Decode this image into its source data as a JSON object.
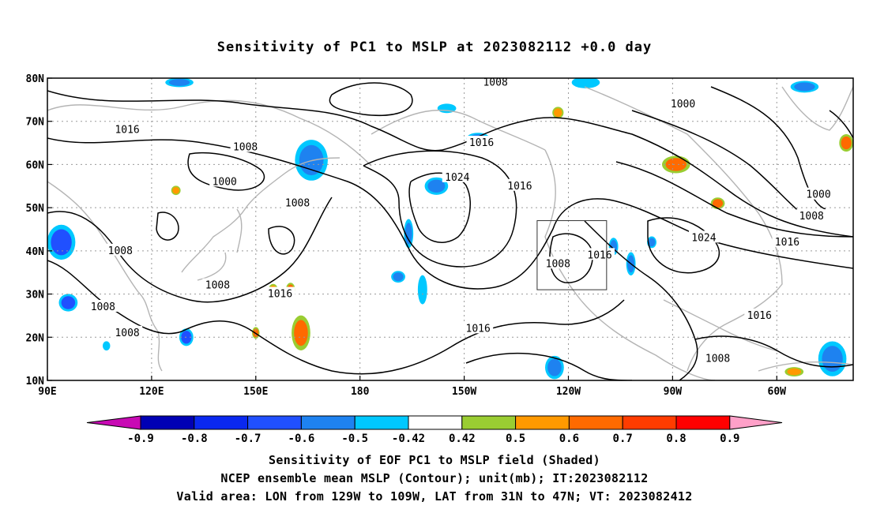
{
  "title": "Sensitivity of PC1 to MSLP at 2023082112 +0.0 day",
  "map": {
    "lon_labels": [
      "90E",
      "120E",
      "150E",
      "180",
      "150W",
      "120W",
      "90W",
      "60W"
    ],
    "lat_labels": [
      "80N",
      "70N",
      "60N",
      "50N",
      "40N",
      "30N",
      "20N",
      "10N"
    ],
    "extent": {
      "lon_min": 90,
      "lon_max": 322,
      "lat_min": 10,
      "lat_max": 80
    },
    "valid_box": {
      "lon_w": -129,
      "lon_e": -109,
      "lat_s": 31,
      "lat_n": 47
    },
    "contour_labels": [
      {
        "text": "1008",
        "lon": 219,
        "lat": 79
      },
      {
        "text": "1000",
        "lon": 273,
        "lat": 74
      },
      {
        "text": "1016",
        "lon": 113,
        "lat": 68
      },
      {
        "text": "1008",
        "lon": 147,
        "lat": 64
      },
      {
        "text": "1016",
        "lon": 215,
        "lat": 65
      },
      {
        "text": "1024",
        "lon": 208,
        "lat": 57
      },
      {
        "text": "1016",
        "lon": 226,
        "lat": 55
      },
      {
        "text": "1000",
        "lon": 141,
        "lat": 56
      },
      {
        "text": "1008",
        "lon": 162,
        "lat": 51
      },
      {
        "text": "1000",
        "lon": 312,
        "lat": 53
      },
      {
        "text": "1008",
        "lon": 310,
        "lat": 48
      },
      {
        "text": "1024",
        "lon": 279,
        "lat": 43
      },
      {
        "text": "1016",
        "lon": 303,
        "lat": 42
      },
      {
        "text": "1008",
        "lon": 111,
        "lat": 40
      },
      {
        "text": "1016",
        "lon": 249,
        "lat": 39
      },
      {
        "text": "1008",
        "lon": 237,
        "lat": 37
      },
      {
        "text": "1008",
        "lon": 139,
        "lat": 32
      },
      {
        "text": "1016",
        "lon": 157,
        "lat": 30
      },
      {
        "text": "1008",
        "lon": 106,
        "lat": 27
      },
      {
        "text": "1016",
        "lon": 214,
        "lat": 22
      },
      {
        "text": "1016",
        "lon": 295,
        "lat": 25
      },
      {
        "text": "1008",
        "lon": 113,
        "lat": 21
      },
      {
        "text": "1008",
        "lon": 283,
        "lat": 15
      }
    ],
    "sensitivity_patches": [
      {
        "lon": 166,
        "lat": 61,
        "rx": 3.5,
        "ry": 3.5,
        "value": -0.6
      },
      {
        "lon": 202,
        "lat": 55,
        "rx": 2.5,
        "ry": 1.5,
        "value": -0.6
      },
      {
        "lon": 214,
        "lat": 66,
        "rx": 2.5,
        "ry": 1.0,
        "value": -0.6
      },
      {
        "lon": 94,
        "lat": 42,
        "rx": 3.0,
        "ry": 3.0,
        "value": -0.7
      },
      {
        "lon": 96,
        "lat": 28,
        "rx": 2.0,
        "ry": 1.5,
        "value": -0.7
      },
      {
        "lon": 130,
        "lat": 20,
        "rx": 1.5,
        "ry": 1.5,
        "value": -0.7
      },
      {
        "lon": 194,
        "lat": 44,
        "rx": 1.0,
        "ry": 2.5,
        "value": -0.6
      },
      {
        "lon": 198,
        "lat": 31,
        "rx": 1.0,
        "ry": 2.5,
        "value": -0.5
      },
      {
        "lon": 191,
        "lat": 34,
        "rx": 1.5,
        "ry": 1.0,
        "value": -0.6
      },
      {
        "lon": 258,
        "lat": 37,
        "rx": 1.0,
        "ry": 2.0,
        "value": -0.6
      },
      {
        "lon": 253,
        "lat": 41,
        "rx": 1.0,
        "ry": 1.5,
        "value": -0.6
      },
      {
        "lon": 264,
        "lat": 42,
        "rx": 1.0,
        "ry": 1.0,
        "value": -0.6
      },
      {
        "lon": 236,
        "lat": 13,
        "rx": 2.0,
        "ry": 2.0,
        "value": -0.6
      },
      {
        "lon": 316,
        "lat": 15,
        "rx": 3.0,
        "ry": 3.0,
        "value": -0.6
      },
      {
        "lon": 245,
        "lat": 79,
        "rx": 3.0,
        "ry": 1.0,
        "value": -0.5
      },
      {
        "lon": 308,
        "lat": 78,
        "rx": 3.0,
        "ry": 1.0,
        "value": -0.6
      },
      {
        "lon": 205,
        "lat": 73,
        "rx": 2.0,
        "ry": 0.8,
        "value": -0.5
      },
      {
        "lon": 128,
        "lat": 79,
        "rx": 3.0,
        "ry": 0.8,
        "value": -0.6
      },
      {
        "lon": 163,
        "lat": 21,
        "rx": 2.0,
        "ry": 3.0,
        "value": 0.6
      },
      {
        "lon": 271,
        "lat": 60,
        "rx": 3.0,
        "ry": 1.5,
        "value": 0.6
      },
      {
        "lon": 283,
        "lat": 51,
        "rx": 1.5,
        "ry": 1.0,
        "value": 0.6
      },
      {
        "lon": 320,
        "lat": 65,
        "rx": 1.5,
        "ry": 1.5,
        "value": 0.6
      },
      {
        "lon": 160,
        "lat": 31,
        "rx": 1.0,
        "ry": 1.2,
        "value": 0.6
      },
      {
        "lon": 150,
        "lat": 21,
        "rx": 0.8,
        "ry": 1.0,
        "value": 0.6
      },
      {
        "lon": 237,
        "lat": 72,
        "rx": 1.2,
        "ry": 1.0,
        "value": 0.5
      },
      {
        "lon": 155,
        "lat": 31,
        "rx": 1.0,
        "ry": 1.0,
        "value": 0.5
      },
      {
        "lon": 127,
        "lat": 54,
        "rx": 1.0,
        "ry": 0.8,
        "value": 0.5
      },
      {
        "lon": 305,
        "lat": 12,
        "rx": 2.0,
        "ry": 0.8,
        "value": 0.5
      },
      {
        "lon": 107,
        "lat": 18,
        "rx": 0.8,
        "ry": 0.8,
        "value": -0.5
      }
    ]
  },
  "colorbar": {
    "labels": [
      "-0.9",
      "-0.8",
      "-0.7",
      "-0.6",
      "-0.5",
      "-0.42",
      "0.42",
      "0.5",
      "0.6",
      "0.7",
      "0.8",
      "0.9"
    ],
    "colors": [
      "#0000b4",
      "#0a28f0",
      "#2050ff",
      "#1e82f0",
      "#00c8ff",
      "#ffffff",
      "#9acd32",
      "#ff9900",
      "#ff6a00",
      "#ff3c00",
      "#ff0000"
    ],
    "low_end_color": "#c80ab4",
    "high_end_color": "#ffa0c8"
  },
  "captions": {
    "line1": "Sensitivity of EOF PC1 to MSLP field (Shaded)",
    "line2": "NCEP ensemble mean MSLP (Contour); unit(mb); IT:2023082112",
    "line3": "Valid area: LON from 129W to 109W, LAT from 31N to 47N; VT: 2023082412"
  }
}
